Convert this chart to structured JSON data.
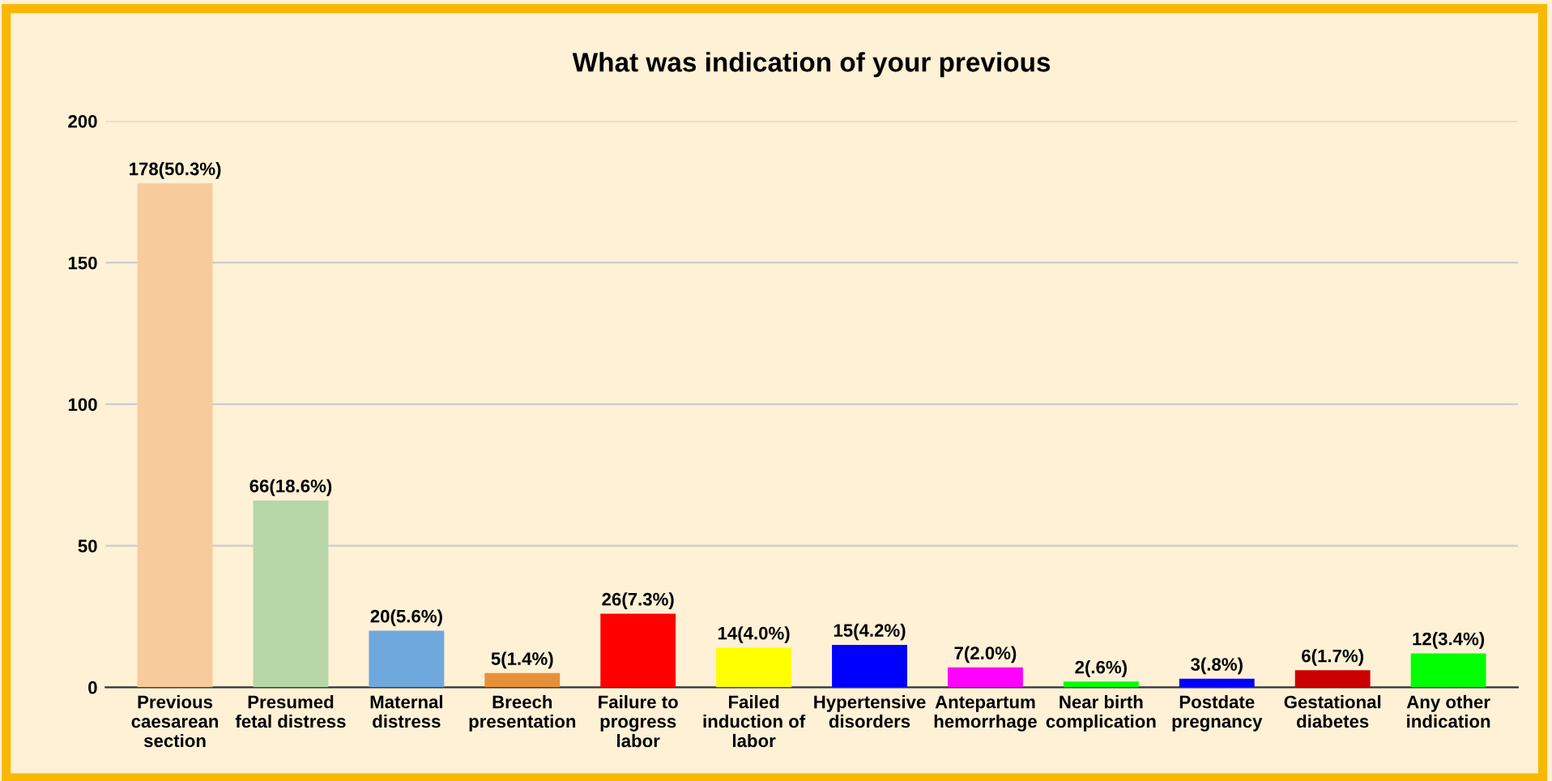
{
  "chart_data": {
    "type": "bar",
    "title": "What was indication of your previous",
    "categories": [
      "Previous\ncaesarean\nsection",
      "Presumed\nfetal distress",
      "Maternal\ndistress",
      "Breech\npresentation",
      "Failure to\nprogress\nlabor",
      "Failed\ninduction of\nlabor",
      "Hypertensive\ndisorders",
      "Antepartum\nhemorrhage",
      "Near birth\ncomplication",
      "Postdate\npregnancy",
      "Gestational\ndiabetes",
      "Any other\nindication"
    ],
    "values": [
      178,
      66,
      20,
      5,
      26,
      14,
      15,
      7,
      2,
      3,
      6,
      12
    ],
    "value_labels": [
      "178(50.3%)",
      "66(18.6%)",
      "20(5.6%)",
      "5(1.4%)",
      "26(7.3%)",
      "14(4.0%)",
      "15(4.2%)",
      "7(2.0%)",
      "2(.6%)",
      "3(.8%)",
      "6(1.7%)",
      "12(3.4%)"
    ],
    "colors": [
      "#f8cb9c",
      "#b7d7a8",
      "#6fa8dc",
      "#e69138",
      "#ff0000",
      "#ffff00",
      "#0000ff",
      "#ff00ff",
      "#00ff00",
      "#0000ff",
      "#cc0000",
      "#00ff00"
    ],
    "ylim": [
      0,
      200
    ],
    "yticks": [
      0,
      50,
      100,
      150,
      200
    ],
    "grid": "y",
    "legend": false
  }
}
